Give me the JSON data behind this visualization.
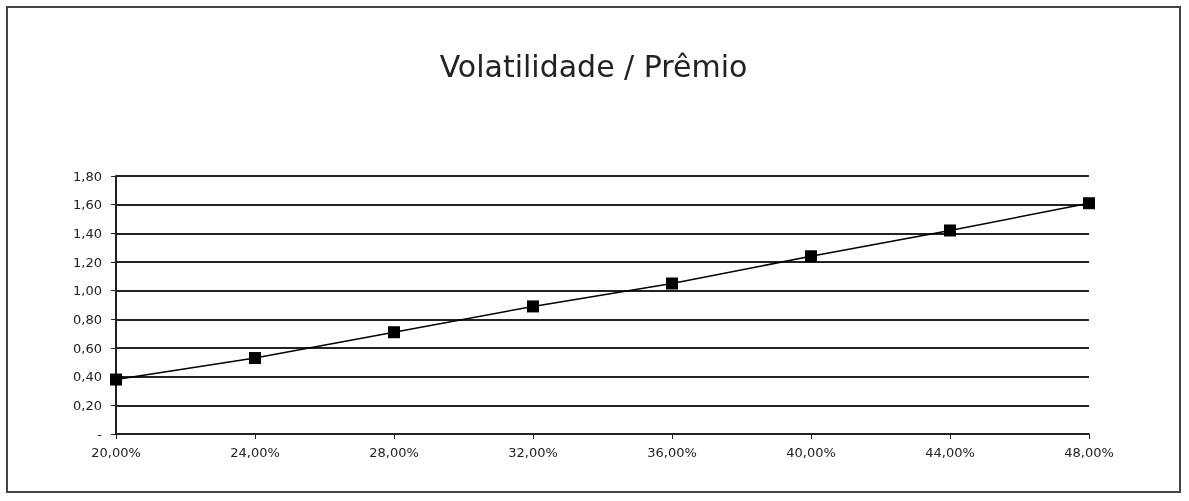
{
  "chart_data": {
    "type": "line",
    "title": "Volatilidade / Prêmio",
    "categories": [
      "20,00%",
      "24,00%",
      "28,00%",
      "32,00%",
      "36,00%",
      "40,00%",
      "44,00%",
      "48,00%"
    ],
    "series": [
      {
        "color": "#000000",
        "values": [
          0.38,
          0.53,
          0.71,
          0.89,
          1.05,
          1.24,
          1.42,
          1.61
        ]
      }
    ],
    "ylim": [
      0,
      1.8
    ],
    "yticks": [
      {
        "value": 0,
        "label": "-"
      },
      {
        "value": 0.2,
        "label": "0,20"
      },
      {
        "value": 0.4,
        "label": "0,40"
      },
      {
        "value": 0.6,
        "label": "0,60"
      },
      {
        "value": 0.8,
        "label": "0,80"
      },
      {
        "value": 1,
        "label": "1,00"
      },
      {
        "value": 1.2,
        "label": "1,20"
      },
      {
        "value": 1.4,
        "label": "1,40"
      },
      {
        "value": 1.6,
        "label": "1,60"
      },
      {
        "value": 1.8,
        "label": "1,80"
      }
    ],
    "grid": "y",
    "marker": "square",
    "line_style": "solid"
  }
}
